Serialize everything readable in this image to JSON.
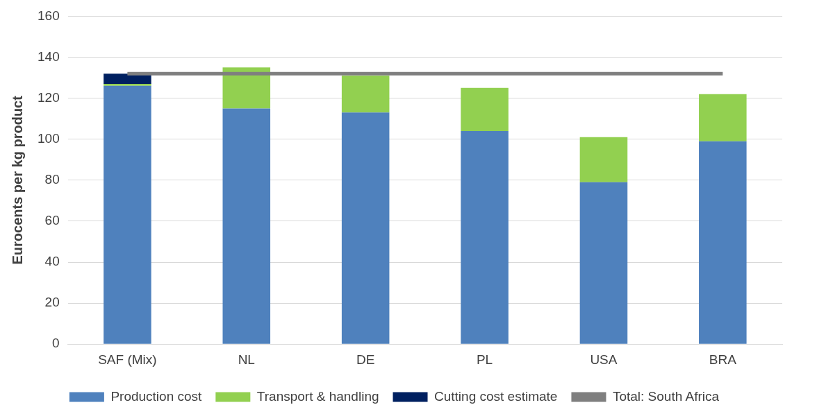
{
  "chart_data": {
    "type": "bar",
    "stacked": true,
    "ylabel": "Eurocents per kg product",
    "categories": [
      "SAF (Mix)",
      "NL",
      "DE",
      "PL",
      "USA",
      "BRA"
    ],
    "series": [
      {
        "name": "Production cost",
        "color": "#4f81bd",
        "values": [
          126,
          115,
          113,
          104,
          79,
          99
        ]
      },
      {
        "name": "Transport & handling",
        "color": "#92d050",
        "values": [
          1,
          20,
          18,
          21,
          22,
          23
        ]
      },
      {
        "name": "Cutting cost estimate",
        "color": "#002060",
        "values": [
          5,
          0,
          0,
          0,
          0,
          0
        ]
      },
      {
        "name": "Total: South Africa",
        "type": "line",
        "color": "#7f7f7f",
        "values": [
          132,
          132,
          132,
          132,
          132,
          132
        ]
      }
    ],
    "ylim": [
      0,
      160
    ],
    "yticks": [
      0,
      20,
      40,
      60,
      80,
      100,
      120,
      140,
      160
    ],
    "grid": "y",
    "legend": "bottom",
    "marker": "none"
  }
}
